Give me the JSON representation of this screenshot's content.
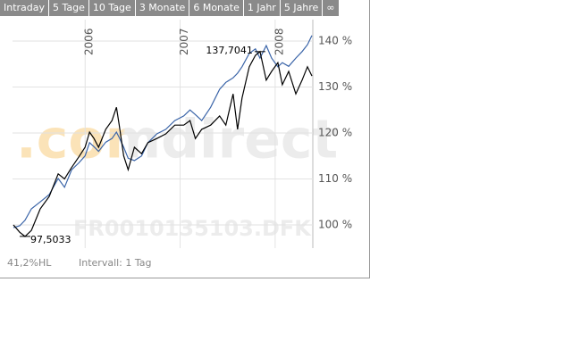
{
  "tabs": [
    "Intraday",
    "5 Tage",
    "10 Tage",
    "3 Monate",
    "6 Monate",
    "1 Jahr",
    "5 Jahre",
    "∞"
  ],
  "chart_data": {
    "type": "line",
    "watermark_logo": ".comdirect",
    "watermark_symbol": "FR0010135103.DFK",
    "x": [
      2005.245,
      2005.311,
      2005.368,
      2005.434,
      2005.528,
      2005.623,
      2005.717,
      2005.783,
      2005.859,
      2005.934,
      2006.0,
      2006.047,
      2006.094,
      2006.142,
      2006.217,
      2006.283,
      2006.33,
      2006.359,
      2006.406,
      2006.453,
      2006.519,
      2006.594,
      2006.661,
      2006.755,
      2006.849,
      2006.944,
      2007.038,
      2007.104,
      2007.16,
      2007.227,
      2007.321,
      2007.415,
      2007.481,
      2007.557,
      2007.604,
      2007.651,
      2007.727,
      2007.792,
      2007.84,
      2007.906,
      2007.962,
      2008.028,
      2008.075,
      2008.142,
      2008.217,
      2008.283,
      2008.34,
      2008.387
    ],
    "series": [
      {
        "color": "#3a64a8",
        "values": [
          99.4,
          99.8,
          101,
          103.5,
          105,
          106.6,
          110.1,
          108.2,
          112,
          113.5,
          115,
          117.9,
          117,
          116,
          118,
          118.8,
          120.2,
          119,
          116.9,
          114.5,
          114,
          115,
          117.9,
          119.8,
          120.8,
          122.7,
          123.7,
          125,
          124,
          122.7,
          125.6,
          129.5,
          131,
          132,
          133,
          134.4,
          137.3,
          138.3,
          136.3,
          139,
          136.3,
          134.4,
          135.3,
          134.5,
          136.3,
          137.7,
          139.2,
          141.2
        ]
      },
      {
        "color": "#000000",
        "values": [
          100,
          98.4,
          97.5,
          98.8,
          103.5,
          106.2,
          111.1,
          110,
          112.5,
          114.8,
          116.9,
          120.2,
          118.8,
          116.9,
          120.8,
          122.7,
          125.6,
          121.7,
          115,
          112,
          116.9,
          115.5,
          117.9,
          118.8,
          119.8,
          121.7,
          121.7,
          122.7,
          118.8,
          120.8,
          121.7,
          123.7,
          121.7,
          128.5,
          120.8,
          127.6,
          134.4,
          136.9,
          137.7,
          131.5,
          133.4,
          135.3,
          130.5,
          133.4,
          128.5,
          131.5,
          134.4,
          132.4
        ]
      }
    ],
    "annotations": [
      {
        "label": "137,7041",
        "x": 2007.84,
        "y": 137.7
      },
      {
        "label": "97,5033",
        "x": 2005.368,
        "y": 97.5
      }
    ],
    "xlim": [
      2005.236,
      2008.396
    ],
    "xticks": [
      2006,
      2007,
      2008
    ],
    "ylim": [
      94.95,
      144.66
    ],
    "yticks": [
      {
        "value": 100,
        "label": "100 %"
      },
      {
        "value": 110,
        "label": "110 %"
      },
      {
        "value": 120,
        "label": "120 %"
      },
      {
        "value": 130,
        "label": "130 %"
      },
      {
        "value": 140,
        "label": "140 %"
      }
    ],
    "grid": true
  },
  "footer": {
    "range": "41,2%HL",
    "interval": "Intervall: 1 Tag"
  }
}
